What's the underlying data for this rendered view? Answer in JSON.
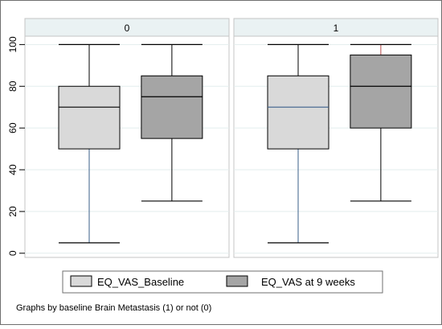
{
  "chart_data": {
    "type": "box",
    "panels": [
      {
        "label": "0",
        "boxes": [
          {
            "series": "EQ_VAS_Baseline",
            "min": 5,
            "q1": 50,
            "median": 70,
            "q3": 80,
            "max": 100
          },
          {
            "series": "EQ_VAS at 9 weeks",
            "min": 25,
            "q1": 55,
            "median": 75,
            "q3": 85,
            "max": 100
          }
        ]
      },
      {
        "label": "1",
        "boxes": [
          {
            "series": "EQ_VAS_Baseline",
            "min": 5,
            "q1": 50,
            "median": 70,
            "q3": 85,
            "max": 100
          },
          {
            "series": "EQ_VAS at 9 weeks",
            "min": 25,
            "q1": 60,
            "median": 80,
            "q3": 95,
            "max": 100
          }
        ]
      }
    ],
    "series": [
      {
        "name": "EQ_VAS_Baseline",
        "color": "#d9d9d9"
      },
      {
        "name": "EQ_VAS at 9 weeks",
        "color": "#a5a5a5"
      }
    ],
    "y_ticks": [
      "0",
      "20",
      "40",
      "60",
      "80",
      "100"
    ],
    "ylim": [
      -2,
      104
    ],
    "grid": true,
    "legend_position": "bottom",
    "note": "Graphs by baseline Brain Metastasis (1) or not (0)"
  }
}
